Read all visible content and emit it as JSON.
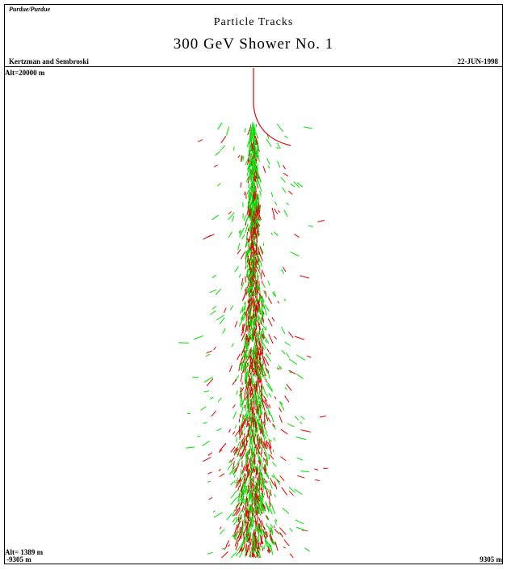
{
  "header": {
    "logo": "Purdue/Purdue",
    "title": "Particle Tracks",
    "subtitle": "300 GeV Shower No. 1",
    "authors": "Kertzman and Sembroski",
    "date": "22-JUN-1998"
  },
  "plot": {
    "top_altitude": "Alt=20000 m",
    "bottom_altitude": "Alt= 1389 m",
    "x_min": "-9305 m",
    "x_max": "9305 m"
  }
}
